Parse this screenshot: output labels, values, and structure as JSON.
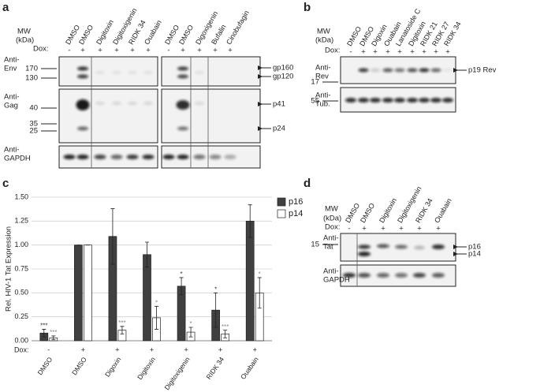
{
  "panel_a": {
    "label": "a",
    "mw": [
      "MW",
      "(kDa)"
    ],
    "dox_label": "Dox:",
    "blots": [
      {
        "lanes": [
          "DMSO",
          "DMSO",
          "Digitoxin",
          "Digitoxigenin",
          "RIDK 34",
          "Ouabain"
        ],
        "dox": [
          "-",
          "+",
          "+",
          "+",
          "+",
          "+"
        ]
      },
      {
        "lanes": [
          "DMSO",
          "DMSO",
          "Digoxigenin",
          "Bufalin",
          "Cinobufagin"
        ],
        "dox": [
          "-",
          "+",
          "+",
          "+",
          "+"
        ]
      }
    ],
    "rows": [
      {
        "antibody": [
          "Anti-",
          "Env"
        ],
        "markers": [
          "170",
          "130"
        ],
        "bands": [
          "gp160",
          "gp120"
        ]
      },
      {
        "antibody": [
          "Anti-",
          "Gag"
        ],
        "markers": [
          "40",
          "35",
          "25"
        ],
        "bands": [
          "p41",
          "p24"
        ]
      },
      {
        "antibody": [
          "Anti-",
          "GAPDH"
        ],
        "markers": [],
        "bands": []
      }
    ]
  },
  "panel_b": {
    "label": "b",
    "mw": [
      "MW",
      "(kDa)"
    ],
    "dox_label": "Dox:",
    "lanes": [
      "DMSO",
      "DMSO",
      "Digoxin",
      "Ouabain",
      "Lanatoside C",
      "Digitoxin",
      "RIDK 21",
      "RIDK 27",
      "RIDK 34"
    ],
    "dox": [
      "-",
      "+",
      "+",
      "+",
      "+",
      "+",
      "+",
      "+",
      "+"
    ],
    "rows": [
      {
        "antibody": [
          "Anti-",
          "Rev"
        ],
        "markers": [
          "17"
        ],
        "bands": [
          "p19 Rev"
        ]
      },
      {
        "antibody": [
          "Anti-",
          "Tub."
        ],
        "markers": [
          "55"
        ],
        "bands": []
      }
    ]
  },
  "panel_d": {
    "label": "d",
    "mw": [
      "MW",
      "(kDa)"
    ],
    "dox_label": "Dox:",
    "lanes": [
      "DMSO",
      "DMSO",
      "Digitoxin",
      "Digitoxigenin",
      "RIDK 34",
      "Ouabain"
    ],
    "dox": [
      "-",
      "+",
      "+",
      "+",
      "+",
      "+"
    ],
    "rows": [
      {
        "antibody": [
          "Anti-",
          "Tat"
        ],
        "markers": [
          "15"
        ],
        "bands": [
          "p16",
          "p14"
        ]
      },
      {
        "antibody": [
          "Anti-",
          "GAPDH"
        ],
        "markers": [],
        "bands": []
      }
    ]
  },
  "chart_data": {
    "type": "bar",
    "panel_label": "c",
    "ylabel": "Rel. HIV-1 Tat Expression",
    "categories": [
      "DMSO",
      "DMSO",
      "Digoxin",
      "Digitoxin",
      "Digitoxigenin",
      "RIDK 34",
      "Ouabain"
    ],
    "dox_label": "Dox:",
    "dox": [
      "-",
      "+",
      "+",
      "+",
      "+",
      "+",
      "+"
    ],
    "ylim": [
      0,
      1.5
    ],
    "yticks": [
      {
        "value": 0,
        "label": "0.00"
      },
      {
        "value": 0.25,
        "label": "0.25"
      },
      {
        "value": 0.5,
        "label": "0.50"
      },
      {
        "value": 0.75,
        "label": "0.75"
      },
      {
        "value": 1,
        "label": "1.00"
      },
      {
        "value": 1.25,
        "label": "1.25"
      },
      {
        "value": 1.5,
        "label": "1.50"
      }
    ],
    "grid": true,
    "legend": "right",
    "series": [
      {
        "name": "p16",
        "color": "#404040",
        "values": [
          0.08,
          1.0,
          1.09,
          0.9,
          0.57,
          0.32,
          1.25
        ],
        "errors": [
          0.04,
          0,
          0.29,
          0.13,
          0.09,
          0.18,
          0.17
        ],
        "stars": [
          "***",
          null,
          null,
          null,
          "*",
          "*",
          null
        ]
      },
      {
        "name": "p14",
        "color": "#ffffff",
        "values": [
          0.03,
          1.0,
          0.11,
          0.24,
          0.09,
          0.07,
          0.5
        ],
        "errors": [
          0.02,
          0,
          0.04,
          0.12,
          0.05,
          0.04,
          0.16
        ],
        "stars": [
          "***",
          null,
          "***",
          "*",
          "*",
          "***",
          "*"
        ]
      }
    ]
  }
}
